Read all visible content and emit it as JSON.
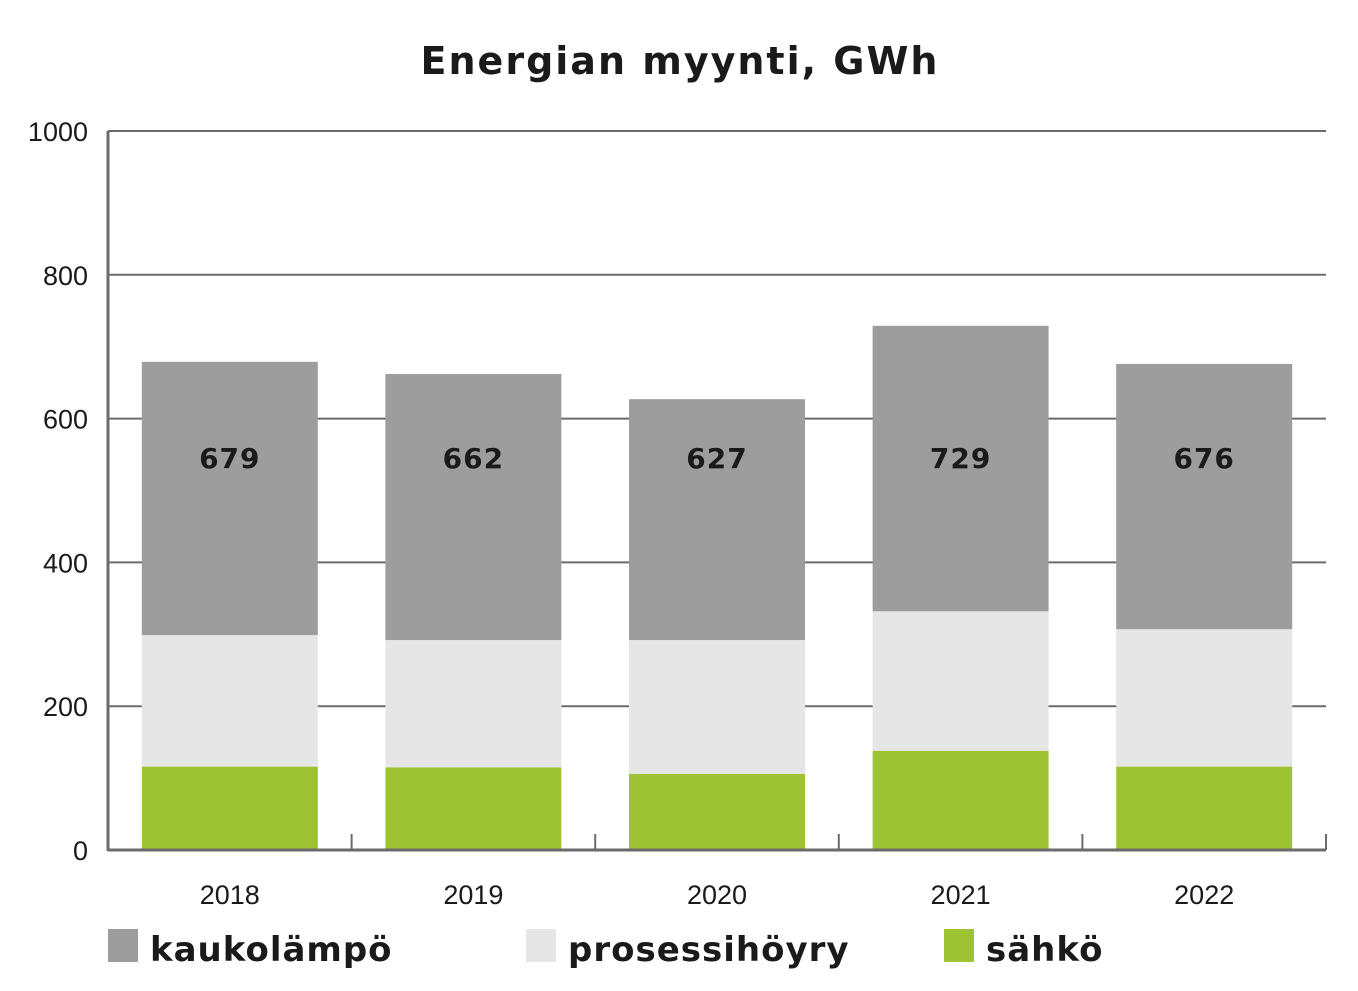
{
  "chart_data": {
    "type": "bar",
    "stacked": true,
    "title": "Energian myynti, GWh",
    "xlabel": "",
    "ylabel": "",
    "ylim": [
      0,
      1000
    ],
    "yticks": [
      "0",
      "200",
      "400",
      "600",
      "800",
      "1000"
    ],
    "grid": true,
    "legend_position": "bottom",
    "categories": [
      "2018",
      "2019",
      "2020",
      "2021",
      "2022"
    ],
    "totals": [
      "679",
      "662",
      "627",
      "729",
      "676"
    ],
    "series": [
      {
        "name": "sähkö",
        "color": "#9dc334",
        "values": [
          116,
          115,
          106,
          138,
          116
        ]
      },
      {
        "name": "prosessihöyry",
        "color": "#e6e6e6",
        "values": [
          183,
          177,
          186,
          194,
          191
        ]
      },
      {
        "name": "kaukolämpö",
        "color": "#9e9d9e",
        "values": [
          380,
          370,
          335,
          397,
          369
        ]
      }
    ],
    "legend": [
      {
        "name": "kaukolämpö",
        "color": "#9e9d9e"
      },
      {
        "name": "prosessihöyry",
        "color": "#e6e6e6"
      },
      {
        "name": "sähkö",
        "color": "#9dc334"
      }
    ]
  }
}
